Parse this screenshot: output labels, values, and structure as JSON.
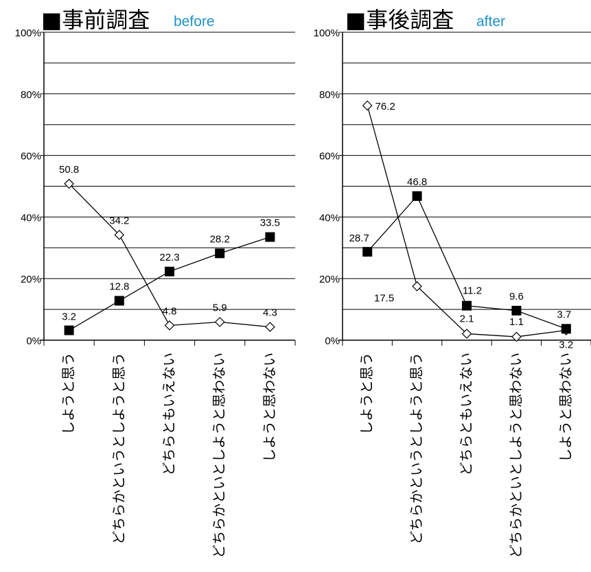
{
  "accent_color": "#1e90c8",
  "chart_data": [
    {
      "type": "line",
      "title": "■事前調査",
      "subtitle": "before",
      "categories": [
        "しようと思う",
        "どちらかというとしようと思う",
        "どちらともいえない",
        "どちらかといとしようと思わない",
        "しようと思わない"
      ],
      "ylim": [
        0,
        100
      ],
      "ytick_labels": [
        "0%",
        "20%",
        "40%",
        "60%",
        "80%",
        "100%"
      ],
      "grid": true,
      "series": [
        {
          "marker": "open-diamond",
          "values": [
            50.8,
            34.2,
            4.8,
            5.9,
            4.3
          ],
          "labels": [
            "50.8",
            "34.2",
            "4.8",
            "5.9",
            "4.3"
          ]
        },
        {
          "marker": "filled-square",
          "values": [
            3.2,
            12.8,
            22.3,
            28.2,
            33.5
          ],
          "labels": [
            "3.2",
            "12.8",
            "22.3",
            "28.2",
            "33.5"
          ]
        }
      ]
    },
    {
      "type": "line",
      "title": "■事後調査",
      "subtitle": "after",
      "categories": [
        "しようと思う",
        "どちらかというとしようと思う",
        "どちらともいえない",
        "どちらかといとしようと思わない",
        "しようと思わない"
      ],
      "ylim": [
        0,
        100
      ],
      "ytick_labels": [
        "0%",
        "20%",
        "40%",
        "60%",
        "80%",
        "100%"
      ],
      "grid": true,
      "series": [
        {
          "marker": "open-diamond",
          "values": [
            76.2,
            17.5,
            2.1,
            1.1,
            3.2
          ],
          "labels": [
            "76.2",
            "17.5",
            "2.1",
            "1.1",
            "3.2"
          ]
        },
        {
          "marker": "filled-square",
          "values": [
            28.7,
            46.8,
            11.2,
            9.6,
            3.7
          ],
          "labels": [
            "28.7",
            "46.8",
            "11.2",
            "9.6",
            "3.7"
          ]
        }
      ]
    }
  ]
}
